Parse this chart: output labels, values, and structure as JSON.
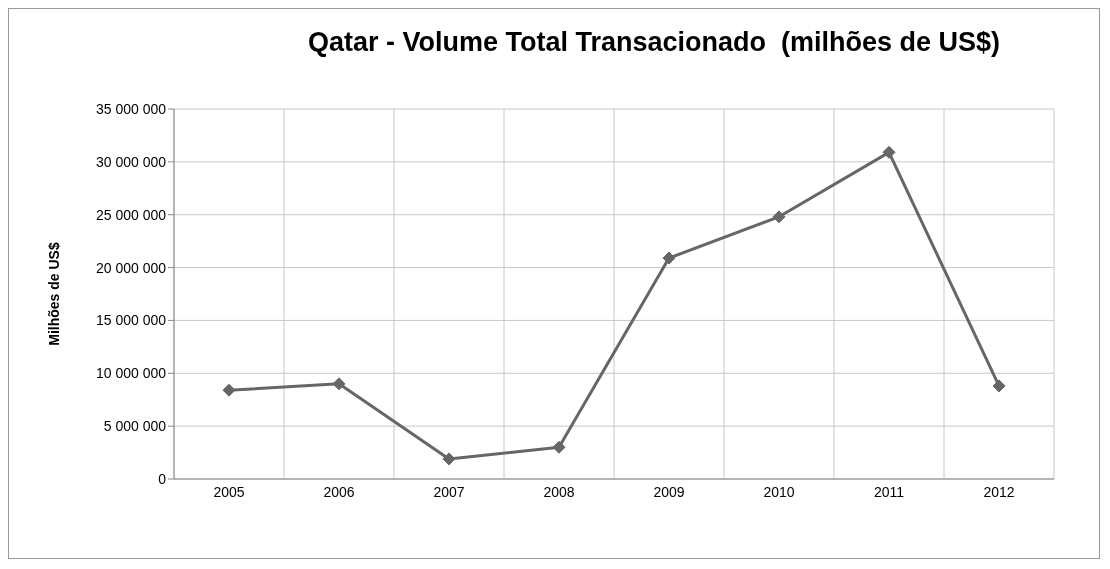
{
  "chart_data": {
    "type": "line",
    "title": "Qatar - Volume Total Transacionado  (milhões de US$)",
    "ylabel": "Milhões de US$",
    "categories": [
      "2005",
      "2006",
      "2007",
      "2008",
      "2009",
      "2010",
      "2011",
      "2012"
    ],
    "series": [
      {
        "color": "#666666",
        "values": [
          8400000,
          9000000,
          1900000,
          3000000,
          20900000,
          24800000,
          30900000,
          8800000
        ]
      }
    ],
    "ylim": [
      0,
      35000000
    ],
    "yticks": [
      {
        "value": 0,
        "label": "0"
      },
      {
        "value": 5000000,
        "label": "5 000 000"
      },
      {
        "value": 10000000,
        "label": "10 000 000"
      },
      {
        "value": 15000000,
        "label": "15 000 000"
      },
      {
        "value": 20000000,
        "label": "20 000 000"
      },
      {
        "value": 25000000,
        "label": "25 000 000"
      },
      {
        "value": 30000000,
        "label": "30 000 000"
      },
      {
        "value": 35000000,
        "label": "35 000 000"
      }
    ],
    "grid": true,
    "marker": "diamond",
    "line_style": "solid"
  }
}
